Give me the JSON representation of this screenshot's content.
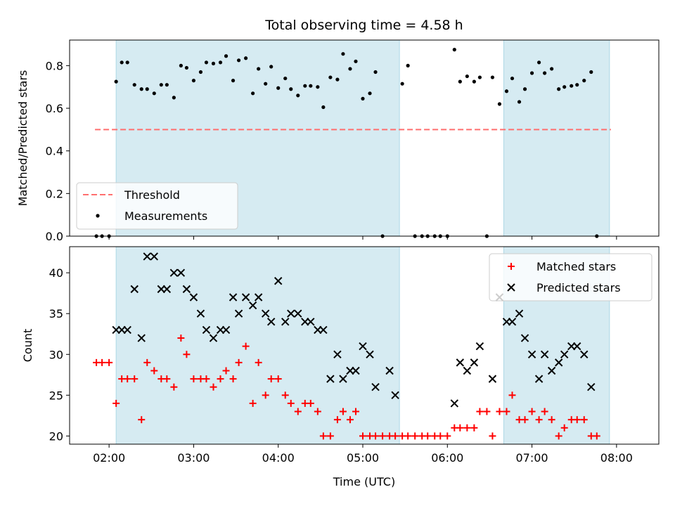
{
  "chart_data": {
    "title": "Total observing time = 4.58 h",
    "xlabel": "Time (UTC)",
    "x_ticks": [
      "02:00",
      "03:00",
      "04:00",
      "05:00",
      "06:00",
      "07:00",
      "08:00"
    ],
    "x_range": [
      "01:32",
      "08:30"
    ],
    "shaded_intervals": [
      [
        "02:05",
        "05:26"
      ],
      [
        "06:40",
        "07:55"
      ]
    ],
    "shade_color": "#add8e6",
    "panels": [
      {
        "type": "scatter",
        "ylabel": "Matched/Predicted stars",
        "ylim": [
          0,
          0.92
        ],
        "y_ticks": [
          "0.0",
          "0.2",
          "0.4",
          "0.6",
          "0.8"
        ],
        "threshold": {
          "name": "Threshold",
          "value": 0.5,
          "x_range": [
            "01:50",
            "07:56"
          ],
          "color": "#ff6f6f"
        },
        "legend": "lower-left",
        "series": [
          {
            "name": "Measurements",
            "color": "#000000",
            "points": [
              [
                "01:51",
                0.0
              ],
              [
                "01:55",
                0.0
              ],
              [
                "02:00",
                0.0
              ],
              [
                "02:05",
                0.725
              ],
              [
                "02:09",
                0.815
              ],
              [
                "02:13",
                0.815
              ],
              [
                "02:18",
                0.71
              ],
              [
                "02:23",
                0.69
              ],
              [
                "02:27",
                0.69
              ],
              [
                "02:32",
                0.67
              ],
              [
                "02:37",
                0.71
              ],
              [
                "02:41",
                0.71
              ],
              [
                "02:46",
                0.65
              ],
              [
                "02:51",
                0.8
              ],
              [
                "02:55",
                0.79
              ],
              [
                "03:00",
                0.73
              ],
              [
                "03:05",
                0.77
              ],
              [
                "03:09",
                0.815
              ],
              [
                "03:14",
                0.81
              ],
              [
                "03:19",
                0.815
              ],
              [
                "03:23",
                0.845
              ],
              [
                "03:28",
                0.73
              ],
              [
                "03:32",
                0.825
              ],
              [
                "03:37",
                0.835
              ],
              [
                "03:42",
                0.67
              ],
              [
                "03:46",
                0.785
              ],
              [
                "03:51",
                0.715
              ],
              [
                "03:55",
                0.795
              ],
              [
                "04:00",
                0.695
              ],
              [
                "04:05",
                0.74
              ],
              [
                "04:09",
                0.69
              ],
              [
                "04:14",
                0.66
              ],
              [
                "04:19",
                0.705
              ],
              [
                "04:23",
                0.705
              ],
              [
                "04:28",
                0.7
              ],
              [
                "04:32",
                0.605
              ],
              [
                "04:37",
                0.745
              ],
              [
                "04:42",
                0.735
              ],
              [
                "04:46",
                0.855
              ],
              [
                "04:51",
                0.785
              ],
              [
                "04:55",
                0.82
              ],
              [
                "05:00",
                0.645
              ],
              [
                "05:05",
                0.67
              ],
              [
                "05:09",
                0.77
              ],
              [
                "05:14",
                0.0
              ],
              [
                "05:28",
                0.715
              ],
              [
                "05:32",
                0.8
              ],
              [
                "05:37",
                0.0
              ],
              [
                "05:42",
                0.0
              ],
              [
                "05:46",
                0.0
              ],
              [
                "05:51",
                0.0
              ],
              [
                "05:55",
                0.0
              ],
              [
                "06:00",
                0.0
              ],
              [
                "06:05",
                0.875
              ],
              [
                "06:09",
                0.725
              ],
              [
                "06:14",
                0.75
              ],
              [
                "06:19",
                0.725
              ],
              [
                "06:23",
                0.745
              ],
              [
                "06:28",
                0.0
              ],
              [
                "06:32",
                0.745
              ],
              [
                "06:37",
                0.62
              ],
              [
                "06:42",
                0.68
              ],
              [
                "06:46",
                0.74
              ],
              [
                "06:51",
                0.63
              ],
              [
                "06:55",
                0.69
              ],
              [
                "07:00",
                0.765
              ],
              [
                "07:05",
                0.815
              ],
              [
                "07:09",
                0.765
              ],
              [
                "07:14",
                0.785
              ],
              [
                "07:19",
                0.69
              ],
              [
                "07:23",
                0.7
              ],
              [
                "07:28",
                0.705
              ],
              [
                "07:32",
                0.71
              ],
              [
                "07:37",
                0.73
              ],
              [
                "07:42",
                0.77
              ],
              [
                "07:46",
                0.0
              ]
            ]
          }
        ]
      },
      {
        "type": "scatter",
        "ylabel": "Count",
        "ylim": [
          19,
          43.2
        ],
        "y_ticks": [
          "20",
          "25",
          "30",
          "35",
          "40"
        ],
        "legend": "top-right",
        "series": [
          {
            "name": "Matched stars",
            "marker": "plus",
            "color": "#ff0000",
            "points": [
              [
                "01:51",
                29
              ],
              [
                "01:55",
                29
              ],
              [
                "02:00",
                29
              ],
              [
                "02:05",
                24
              ],
              [
                "02:09",
                27
              ],
              [
                "02:13",
                27
              ],
              [
                "02:18",
                27
              ],
              [
                "02:23",
                22
              ],
              [
                "02:27",
                29
              ],
              [
                "02:32",
                28
              ],
              [
                "02:37",
                27
              ],
              [
                "02:41",
                27
              ],
              [
                "02:46",
                26
              ],
              [
                "02:51",
                32
              ],
              [
                "02:55",
                30
              ],
              [
                "03:00",
                27
              ],
              [
                "03:05",
                27
              ],
              [
                "03:09",
                27
              ],
              [
                "03:14",
                26
              ],
              [
                "03:19",
                27
              ],
              [
                "03:23",
                28
              ],
              [
                "03:28",
                27
              ],
              [
                "03:32",
                29
              ],
              [
                "03:37",
                31
              ],
              [
                "03:42",
                24
              ],
              [
                "03:46",
                29
              ],
              [
                "03:51",
                25
              ],
              [
                "03:55",
                27
              ],
              [
                "04:00",
                27
              ],
              [
                "04:05",
                25
              ],
              [
                "04:09",
                24
              ],
              [
                "04:14",
                23
              ],
              [
                "04:19",
                24
              ],
              [
                "04:23",
                24
              ],
              [
                "04:28",
                23
              ],
              [
                "04:32",
                20
              ],
              [
                "04:37",
                20
              ],
              [
                "04:42",
                22
              ],
              [
                "04:46",
                23
              ],
              [
                "04:51",
                22
              ],
              [
                "04:55",
                23
              ],
              [
                "05:00",
                20
              ],
              [
                "05:05",
                20
              ],
              [
                "05:09",
                20
              ],
              [
                "05:14",
                20
              ],
              [
                "05:19",
                20
              ],
              [
                "05:23",
                20
              ],
              [
                "05:28",
                20
              ],
              [
                "05:32",
                20
              ],
              [
                "05:37",
                20
              ],
              [
                "05:42",
                20
              ],
              [
                "05:46",
                20
              ],
              [
                "05:51",
                20
              ],
              [
                "05:55",
                20
              ],
              [
                "06:00",
                20
              ],
              [
                "06:05",
                21
              ],
              [
                "06:09",
                21
              ],
              [
                "06:14",
                21
              ],
              [
                "06:19",
                21
              ],
              [
                "06:23",
                23
              ],
              [
                "06:28",
                23
              ],
              [
                "06:32",
                20
              ],
              [
                "06:37",
                23
              ],
              [
                "06:42",
                23
              ],
              [
                "06:46",
                25
              ],
              [
                "06:51",
                22
              ],
              [
                "06:55",
                22
              ],
              [
                "07:00",
                23
              ],
              [
                "07:05",
                22
              ],
              [
                "07:09",
                23
              ],
              [
                "07:14",
                22
              ],
              [
                "07:19",
                20
              ],
              [
                "07:23",
                21
              ],
              [
                "07:28",
                22
              ],
              [
                "07:32",
                22
              ],
              [
                "07:37",
                22
              ],
              [
                "07:42",
                20
              ],
              [
                "07:46",
                20
              ]
            ]
          },
          {
            "name": "Predicted stars",
            "marker": "x",
            "color": "#000000",
            "points": [
              [
                "02:05",
                33
              ],
              [
                "02:09",
                33
              ],
              [
                "02:13",
                33
              ],
              [
                "02:18",
                38
              ],
              [
                "02:23",
                32
              ],
              [
                "02:27",
                42
              ],
              [
                "02:32",
                42
              ],
              [
                "02:37",
                38
              ],
              [
                "02:41",
                38
              ],
              [
                "02:46",
                40
              ],
              [
                "02:51",
                40
              ],
              [
                "02:55",
                38
              ],
              [
                "03:00",
                37
              ],
              [
                "03:05",
                35
              ],
              [
                "03:09",
                33
              ],
              [
                "03:14",
                32
              ],
              [
                "03:19",
                33
              ],
              [
                "03:23",
                33
              ],
              [
                "03:28",
                37
              ],
              [
                "03:32",
                35
              ],
              [
                "03:37",
                37
              ],
              [
                "03:42",
                36
              ],
              [
                "03:46",
                37
              ],
              [
                "03:51",
                35
              ],
              [
                "03:55",
                34
              ],
              [
                "04:00",
                39
              ],
              [
                "04:05",
                34
              ],
              [
                "04:09",
                35
              ],
              [
                "04:14",
                35
              ],
              [
                "04:19",
                34
              ],
              [
                "04:23",
                34
              ],
              [
                "04:28",
                33
              ],
              [
                "04:32",
                33
              ],
              [
                "04:37",
                27
              ],
              [
                "04:42",
                30
              ],
              [
                "04:46",
                27
              ],
              [
                "04:51",
                28
              ],
              [
                "04:55",
                28
              ],
              [
                "05:00",
                31
              ],
              [
                "05:05",
                30
              ],
              [
                "05:09",
                26
              ],
              [
                "05:19",
                28
              ],
              [
                "05:23",
                25
              ],
              [
                "06:05",
                24
              ],
              [
                "06:09",
                29
              ],
              [
                "06:14",
                28
              ],
              [
                "06:19",
                29
              ],
              [
                "06:23",
                31
              ],
              [
                "06:32",
                27
              ],
              [
                "06:37",
                37
              ],
              [
                "06:42",
                34
              ],
              [
                "06:46",
                34
              ],
              [
                "06:51",
                35
              ],
              [
                "06:55",
                32
              ],
              [
                "07:00",
                30
              ],
              [
                "07:05",
                27
              ],
              [
                "07:09",
                30
              ],
              [
                "07:14",
                28
              ],
              [
                "07:19",
                29
              ],
              [
                "07:23",
                30
              ],
              [
                "07:28",
                31
              ],
              [
                "07:32",
                31
              ],
              [
                "07:37",
                30
              ],
              [
                "07:42",
                26
              ]
            ]
          }
        ]
      }
    ]
  }
}
